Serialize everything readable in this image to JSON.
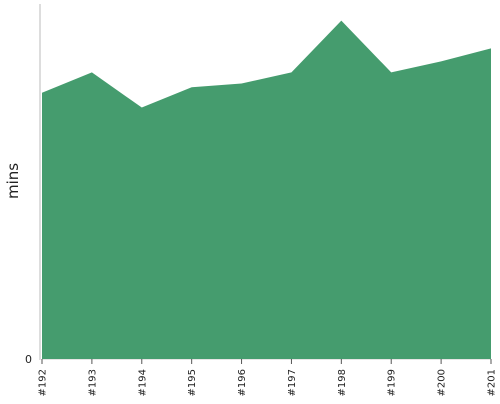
{
  "chart_data": {
    "type": "area",
    "title": "",
    "xlabel": "",
    "ylabel": "mins",
    "categories": [
      "#192",
      "#193",
      "#194",
      "#195",
      "#196",
      "#197",
      "#198",
      "#199",
      "#200",
      "#201"
    ],
    "series": [
      {
        "values": [
          7.2,
          7.75,
          6.8,
          7.35,
          7.45,
          7.75,
          9.15,
          7.75,
          8.05,
          8.4
        ]
      }
    ],
    "y_ticks": [
      0
    ],
    "y_tick_labels": [
      "0"
    ],
    "ylim": [
      0,
      9.6
    ],
    "grid": false,
    "legend": "none",
    "colors": {
      "area": "#459c6e",
      "axis": "#bbbbbb",
      "tick": "#555555",
      "text": "#222222"
    }
  }
}
